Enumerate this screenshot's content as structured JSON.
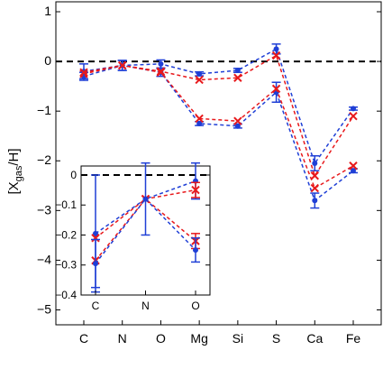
{
  "chart_data": [
    {
      "type": "line",
      "title": "",
      "xlabel": "",
      "ylabel": "[X_gas/H]",
      "ylabel_parts": {
        "open": "[X",
        "sub": "gas",
        "close": "/H]"
      },
      "categories": [
        "C",
        "N",
        "O",
        "Mg",
        "Si",
        "S",
        "Ca",
        "Fe"
      ],
      "ylim": [
        -5.3,
        1.2
      ],
      "yticks": [
        1,
        0,
        -1,
        -2,
        -3,
        -4,
        -5
      ],
      "ytick_labels": [
        "1",
        "0",
        "−1",
        "−2",
        "−3",
        "−4",
        "−5"
      ],
      "reference_line": 0,
      "grid": false,
      "colors": {
        "blue": "#1f3fd6",
        "red": "#e8191c",
        "ref": "#000000"
      },
      "series": [
        {
          "color": "blue",
          "marker": "circle",
          "values": [
            -0.3,
            -0.08,
            -0.22,
            -1.25,
            -1.3,
            -0.62,
            -2.8,
            -2.2
          ],
          "err": [
            0.08,
            0.1,
            0.08,
            0.04,
            0.04,
            0.2,
            0.15,
            0.04
          ]
        },
        {
          "color": "red",
          "marker": "x",
          "values": [
            -0.25,
            -0.08,
            -0.22,
            -1.15,
            -1.2,
            -0.55,
            -2.55,
            -2.1
          ],
          "err": [
            0,
            0,
            0,
            0,
            0,
            0,
            0,
            0
          ]
        },
        {
          "color": "blue",
          "marker": "circle",
          "values": [
            -0.2,
            -0.08,
            -0.05,
            -0.25,
            -0.18,
            0.25,
            -2.05,
            -0.95
          ],
          "err": [
            0.15,
            0.1,
            0.08,
            0.04,
            0.04,
            0.1,
            0.15,
            0.03
          ]
        },
        {
          "color": "red",
          "marker": "x",
          "values": [
            -0.22,
            -0.08,
            -0.2,
            -0.37,
            -0.33,
            0.12,
            -2.3,
            -1.1
          ],
          "err": [
            0,
            0,
            0,
            0,
            0,
            0,
            0,
            0
          ]
        }
      ]
    },
    {
      "type": "line",
      "title": "",
      "categories": [
        "C",
        "N",
        "O"
      ],
      "ylim": [
        -0.4,
        0.03
      ],
      "yticks": [
        0,
        -0.1,
        -0.2,
        -0.3,
        -0.4
      ],
      "ytick_labels": [
        "0",
        "−0.1",
        "−0.2",
        "−0.3",
        "−0.4"
      ],
      "reference_line": 0,
      "series": [
        {
          "color": "blue",
          "marker": "circle",
          "values": [
            -0.195,
            -0.08,
            -0.02
          ],
          "err": [
            0.195,
            0.12,
            0.06
          ]
        },
        {
          "color": "red",
          "marker": "x",
          "values": [
            -0.21,
            -0.08,
            -0.05
          ],
          "err": [
            0,
            0,
            0.025
          ]
        },
        {
          "color": "red",
          "marker": "x",
          "values": [
            -0.285,
            -0.08,
            -0.22
          ],
          "err": [
            0,
            0,
            0.025
          ]
        },
        {
          "color": "blue",
          "marker": "circle",
          "values": [
            -0.295,
            -0.08,
            -0.25
          ],
          "err": [
            0.08,
            0,
            0.04
          ]
        }
      ]
    }
  ]
}
